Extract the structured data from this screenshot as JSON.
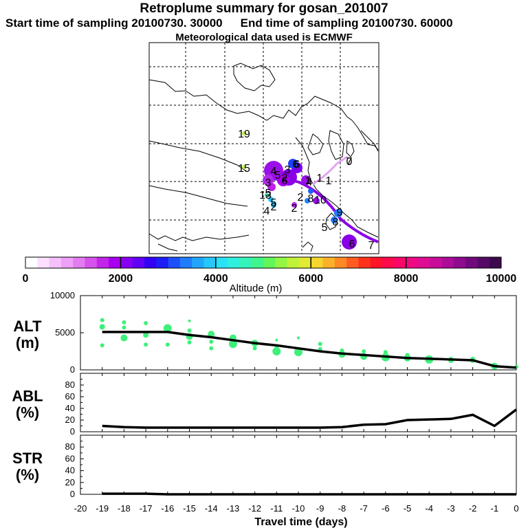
{
  "header": {
    "title": "Retroplume summary for gosan_201007",
    "start_sampling": "Start time of sampling 20100730. 30000",
    "end_sampling": "End time of sampling 20100730. 60000",
    "met_data": "Meteorological data used is ECMWF"
  },
  "map": {
    "labels": [
      "19",
      "15",
      "4",
      "6",
      "3",
      "0",
      "7",
      "1",
      "1",
      "5",
      "2",
      "6",
      "1",
      "13",
      "2",
      "3",
      "4",
      "8",
      "5",
      "2",
      "9",
      "8",
      "4",
      "6",
      "10",
      "2",
      "5",
      "6",
      "5",
      "7"
    ]
  },
  "colorbar": {
    "ticks": [
      "0",
      "2000",
      "4000",
      "6000",
      "8000",
      "10000"
    ],
    "label": "Altitude (m)",
    "colors": [
      "#ffffff",
      "#fde0ff",
      "#f6c0fb",
      "#ee9ff6",
      "#e37cf0",
      "#d552ec",
      "#c224ea",
      "#a800ee",
      "#8800f2",
      "#6000f4",
      "#3300f6",
      "#1d1df8",
      "#1e50fa",
      "#1f7dfb",
      "#22a6fc",
      "#26c8fc",
      "#2ae2f6",
      "#2ff0dc",
      "#34f4b9",
      "#3ff58c",
      "#62f65b",
      "#93f642",
      "#c0f239",
      "#e4ea33",
      "#f6d52e",
      "#fbb22a",
      "#fd8925",
      "#fe5c20",
      "#ff321b",
      "#ff1428",
      "#ff0a4a",
      "#fa0868",
      "#ef0a82",
      "#df0c94",
      "#c80c9a",
      "#ac0c98",
      "#8e0a8e",
      "#700a7c",
      "#560a66",
      "#3c0a4c"
    ]
  },
  "chart_data": [
    {
      "type": "scatter",
      "name": "ALT",
      "ylabel": "ALT\n(m)",
      "ylabel_line1": "ALT",
      "ylabel_line2": "(m)",
      "ylim": [
        0,
        10000
      ],
      "yticks": [
        "10000",
        "5000",
        "0"
      ],
      "x": [
        -19,
        -18,
        -17,
        -16,
        -15,
        -14,
        -13,
        -12,
        -11,
        -10,
        -9,
        -8,
        -7,
        -6,
        -5,
        -4,
        -3,
        -2,
        -1,
        0
      ],
      "median_altitude": [
        5100,
        5100,
        5100,
        5100,
        4700,
        4400,
        4000,
        3600,
        3300,
        2900,
        2500,
        2200,
        2000,
        1800,
        1600,
        1500,
        1400,
        1300,
        500,
        300
      ],
      "points": [
        [
          -19,
          6700,
          2
        ],
        [
          -19,
          5800,
          3
        ],
        [
          -19,
          3300,
          2
        ],
        [
          -18,
          6400,
          2
        ],
        [
          -18,
          5700,
          2
        ],
        [
          -18,
          4300,
          4
        ],
        [
          -17,
          6300,
          2
        ],
        [
          -17,
          4700,
          3
        ],
        [
          -17,
          3400,
          2
        ],
        [
          -16,
          5600,
          5
        ],
        [
          -16,
          3400,
          2
        ],
        [
          -15,
          6600,
          1
        ],
        [
          -15,
          5300,
          2
        ],
        [
          -15,
          4500,
          4
        ],
        [
          -15,
          3700,
          2
        ],
        [
          -14,
          4800,
          4
        ],
        [
          -14,
          3800,
          2
        ],
        [
          -14,
          2900,
          2
        ],
        [
          -13,
          4300,
          4
        ],
        [
          -13,
          3500,
          5
        ],
        [
          -12,
          3600,
          4
        ],
        [
          -12,
          2900,
          2
        ],
        [
          -11,
          4000,
          1
        ],
        [
          -11,
          3200,
          2
        ],
        [
          -11,
          2500,
          5
        ],
        [
          -10,
          4300,
          1
        ],
        [
          -10,
          2800,
          2
        ],
        [
          -10,
          2400,
          5
        ],
        [
          -9,
          3500,
          2
        ],
        [
          -9,
          2800,
          2
        ],
        [
          -8,
          2600,
          2
        ],
        [
          -8,
          2100,
          4
        ],
        [
          -7,
          2500,
          2
        ],
        [
          -7,
          1800,
          4
        ],
        [
          -6,
          2400,
          2
        ],
        [
          -6,
          1700,
          5
        ],
        [
          -5,
          2000,
          2
        ],
        [
          -5,
          1600,
          4
        ],
        [
          -4,
          1400,
          5
        ],
        [
          -3,
          1500,
          2
        ],
        [
          -3,
          1300,
          3
        ],
        [
          -2,
          1500,
          2
        ],
        [
          -2,
          1300,
          3
        ],
        [
          -1,
          700,
          2
        ],
        [
          -1,
          500,
          4
        ],
        [
          0,
          400,
          2
        ]
      ]
    },
    {
      "type": "line",
      "name": "ABL",
      "ylabel": "ABL\n(%)",
      "ylabel_line1": "ABL",
      "ylabel_line2": "(%)",
      "ylim": [
        0,
        100
      ],
      "yticks": [
        "80",
        "60",
        "40",
        "20",
        "0"
      ],
      "x": [
        -19,
        -18,
        -17,
        -16,
        -15,
        -14,
        -13,
        -12,
        -11,
        -10,
        -9,
        -8,
        -7,
        -6,
        -5,
        -4,
        -3,
        -2,
        -1,
        0
      ],
      "values": [
        10,
        8,
        7,
        7,
        7,
        7,
        7,
        7,
        7,
        7,
        7,
        8,
        12,
        13,
        20,
        21,
        22,
        29,
        10,
        38
      ]
    },
    {
      "type": "line",
      "name": "STR",
      "ylabel": "STR\n(%)",
      "ylabel_line1": "STR",
      "ylabel_line2": "(%)",
      "ylim": [
        0,
        100
      ],
      "yticks": [
        "80",
        "60",
        "40",
        "20",
        "0"
      ],
      "x": [
        -19,
        -18,
        -17,
        -16,
        -15,
        -14,
        -13,
        -12,
        -11,
        -10,
        -9,
        -8,
        -7,
        -6,
        -5,
        -4,
        -3,
        -2,
        -1,
        0
      ],
      "values": [
        1,
        1,
        1,
        0,
        0,
        0,
        0,
        0,
        0,
        0,
        0,
        0,
        0,
        0,
        0,
        0,
        0,
        0,
        0,
        0
      ]
    }
  ],
  "x_axis": {
    "label": "Travel time (days)",
    "ticks": [
      "-20",
      "-19",
      "-18",
      "-17",
      "-16",
      "-15",
      "-14",
      "-13",
      "-12",
      "-11",
      "-10",
      "-9",
      "-8",
      "-7",
      "-6",
      "-5",
      "-4",
      "-3",
      "-2",
      "-1",
      "0"
    ],
    "values": [
      -20,
      -19,
      -18,
      -17,
      -16,
      -15,
      -14,
      -13,
      -12,
      -11,
      -10,
      -9,
      -8,
      -7,
      -6,
      -5,
      -4,
      -3,
      -2,
      -1,
      0
    ]
  },
  "colors": {
    "scatter": "#3ef07a",
    "line": "#000000",
    "plume": "#8a00e6"
  }
}
